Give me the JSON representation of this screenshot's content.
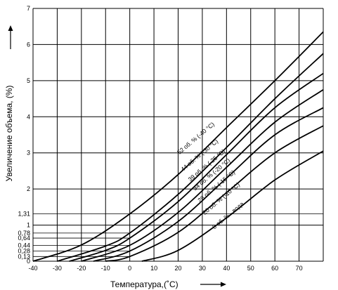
{
  "chart_data": {
    "type": "line",
    "xlabel": "Температура,(˚С)",
    "ylabel": "Увеличение объема, (%)",
    "xlim": [
      -40,
      80
    ],
    "ylim": [
      0,
      7
    ],
    "grid": true,
    "x_ticks": [
      "-40",
      "-30",
      "-20",
      "-10",
      "0",
      "10",
      "20",
      "30",
      "40",
      "50",
      "60",
      "70"
    ],
    "y_ticks": [
      "0",
      "1",
      "2",
      "3",
      "4",
      "5",
      "6",
      "7"
    ],
    "y_marks": [
      {
        "label": "0,13",
        "value": 0.13
      },
      {
        "label": "0,28",
        "value": 0.28
      },
      {
        "label": "0,44",
        "value": 0.44
      },
      {
        "label": "0,64",
        "value": 0.64
      },
      {
        "label": "0,78",
        "value": 0.78
      },
      {
        "label": "1,31",
        "value": 1.31
      }
    ],
    "series": [
      {
        "name": "52 об. % (-40 °С)",
        "start": [
          -40,
          0
        ],
        "x": [
          -40,
          -20,
          0,
          20,
          40,
          60,
          80
        ],
        "values": [
          0,
          0.45,
          1.31,
          2.4,
          3.7,
          5.0,
          6.35
        ]
      },
      {
        "name": "44 об. % (-30 °С)",
        "start": [
          -30,
          0
        ],
        "x": [
          -30,
          -10,
          0,
          20,
          40,
          60,
          80
        ],
        "values": [
          0,
          0.42,
          0.78,
          1.85,
          3.15,
          4.5,
          5.75
        ]
      },
      {
        "name": "39 об. % (-25 °С)",
        "start": [
          -25,
          0
        ],
        "x": [
          -25,
          -10,
          0,
          20,
          40,
          60,
          80
        ],
        "values": [
          0,
          0.3,
          0.64,
          1.65,
          2.95,
          4.25,
          5.2
        ]
      },
      {
        "name": "34 об. % (-20 °С)",
        "start": [
          -20,
          0
        ],
        "x": [
          -20,
          0,
          20,
          40,
          60,
          80
        ],
        "values": [
          0,
          0.44,
          1.35,
          2.6,
          3.85,
          4.75
        ]
      },
      {
        "name": "28 об. % (-15 °С)",
        "start": [
          -15,
          0
        ],
        "x": [
          -15,
          0,
          20,
          40,
          60,
          80
        ],
        "values": [
          0,
          0.28,
          1.1,
          2.3,
          3.5,
          4.25
        ]
      },
      {
        "name": "20 об. % (-10 °С)",
        "start": [
          -10,
          0
        ],
        "x": [
          -10,
          0,
          20,
          40,
          60,
          80
        ],
        "values": [
          0,
          0.13,
          0.8,
          1.9,
          3.0,
          3.75
        ]
      },
      {
        "name": "0 об. % - вода",
        "start": [
          5,
          0
        ],
        "x": [
          5,
          20,
          40,
          60,
          80
        ],
        "values": [
          0,
          0.3,
          1.2,
          2.25,
          3.05
        ]
      }
    ]
  }
}
